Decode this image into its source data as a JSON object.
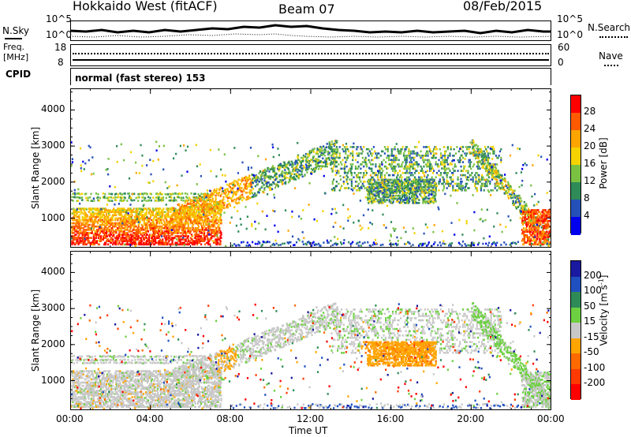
{
  "header": {
    "station": "Hokkaido West (fitACF)",
    "beam": "Beam 07",
    "date": "08/Feb/2015"
  },
  "left_labels": {
    "nsky": "N.Sky",
    "freq_line1": "Freq.",
    "freq_line2": "[MHz]",
    "cpid": "CPID"
  },
  "right_labels": {
    "nsearch": "N.Search",
    "nave": "Nave"
  },
  "noise_panel": {
    "tick_top": "10^5",
    "tick_bottom": "10^0"
  },
  "freq_panel": {
    "left_ticks": [
      "18",
      "8"
    ],
    "right_ticks": [
      "60",
      "0"
    ]
  },
  "cpid_text": "normal (fast stereo) 153",
  "chart_data": [
    {
      "type": "heatmap",
      "name": "power",
      "ylabel": "Slant Range [km]",
      "ylim": [
        180,
        4600
      ],
      "yticks": [
        1000,
        2000,
        3000,
        4000
      ],
      "xlim": [
        0,
        24
      ],
      "colorbar": {
        "label": "Power [dB]",
        "ticks": [
          "4",
          "8",
          "12",
          "16",
          "20",
          "24",
          "28"
        ],
        "colors": [
          "#0000ee",
          "#2550b8",
          "#2e8b57",
          "#7ac142",
          "#f5d200",
          "#ffa500",
          "#ff5a00",
          "#ff0000"
        ]
      }
    },
    {
      "type": "heatmap",
      "name": "velocity",
      "ylabel": "Slant Range [km]",
      "ylim": [
        180,
        4600
      ],
      "yticks": [
        1000,
        2000,
        3000,
        4000
      ],
      "xlim": [
        0,
        24
      ],
      "colorbar": {
        "label": "Velocity [m s",
        "label_sup": "-1",
        "label_end": "]",
        "ticks": [
          "200",
          "100",
          "50",
          "15",
          "-15",
          "-50",
          "-100",
          "-200"
        ],
        "colors": [
          "#1a1aa0",
          "#2050c0",
          "#2e8b57",
          "#6cd040",
          "#c8c8c8",
          "#ffa500",
          "#ff6a00",
          "#ff3a00",
          "#ff0000"
        ]
      }
    }
  ],
  "xaxis": {
    "label": "Time UT",
    "ticks": [
      "00:00",
      "04:00",
      "08:00",
      "12:00",
      "16:00",
      "20:00",
      "00:00"
    ]
  }
}
